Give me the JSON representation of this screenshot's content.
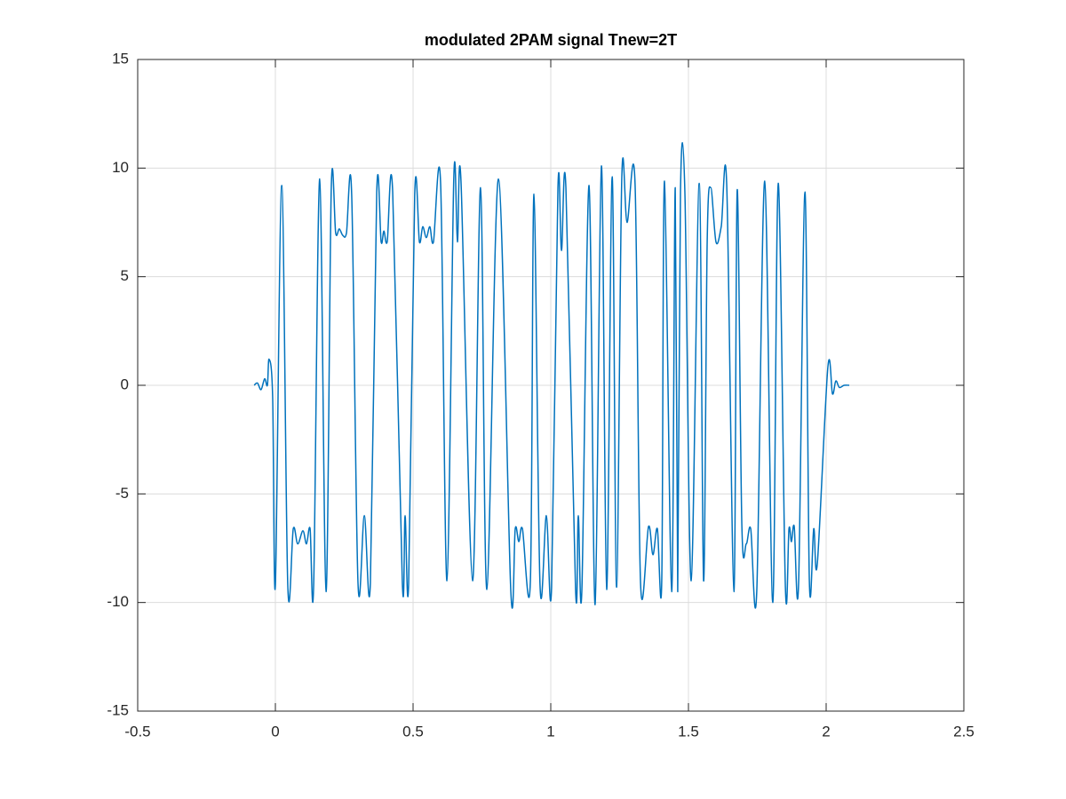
{
  "chart_data": {
    "type": "line",
    "title": "modulated 2PAM signal Tnew=2T",
    "x": [
      -0.077,
      -0.065,
      -0.052,
      -0.039,
      -0.029,
      -0.023,
      -0.01,
      0,
      0.023,
      0.045,
      0.065,
      0.081,
      0.1,
      0.113,
      0.126,
      0.139,
      0.161,
      0.184,
      0.203,
      0.219,
      0.232,
      0.245,
      0.258,
      0.277,
      0.3,
      0.323,
      0.345,
      0.368,
      0.384,
      0.394,
      0.406,
      0.426,
      0.461,
      0.471,
      0.484,
      0.506,
      0.523,
      0.535,
      0.548,
      0.561,
      0.574,
      0.6,
      0.623,
      0.648,
      0.661,
      0.674,
      0.716,
      0.745,
      0.768,
      0.81,
      0.855,
      0.871,
      0.884,
      0.897,
      0.926,
      0.939,
      0.961,
      0.984,
      1.003,
      1.026,
      1.039,
      1.055,
      1.09,
      1.1,
      1.113,
      1.139,
      1.161,
      1.184,
      1.203,
      1.223,
      1.239,
      1.258,
      1.277,
      1.306,
      1.326,
      1.355,
      1.371,
      1.387,
      1.403,
      1.413,
      1.439,
      1.452,
      1.461,
      1.471,
      1.487,
      1.51,
      1.539,
      1.555,
      1.568,
      1.581,
      1.6,
      1.619,
      1.639,
      1.665,
      1.677,
      1.694,
      1.71,
      1.726,
      1.748,
      1.777,
      1.806,
      1.826,
      1.852,
      1.865,
      1.874,
      1.884,
      1.9,
      1.923,
      1.939,
      1.955,
      1.968,
      2.006,
      2.023,
      2.035,
      2.048,
      2.065,
      2.084
    ],
    "series": [
      {
        "color": "#0072bd",
        "values": [
          0,
          0.1,
          -0.2,
          0.3,
          0,
          1.2,
          -0.5,
          -9.2,
          9.2,
          -9.2,
          -6.6,
          -7.3,
          -6.7,
          -7.3,
          -6.6,
          -9.2,
          9.5,
          -9.5,
          9.1,
          7.0,
          7.2,
          6.9,
          7.0,
          8.8,
          -9.1,
          -6.0,
          -9.1,
          8.9,
          6.6,
          7.1,
          6.6,
          8.9,
          -9.1,
          -6.0,
          -9.1,
          8.8,
          6.6,
          7.3,
          6.8,
          7.3,
          6.6,
          9.3,
          -9.0,
          9.6,
          6.6,
          9.4,
          -9.0,
          9.1,
          -9.4,
          9.5,
          -9.5,
          -6.6,
          -7.2,
          -6.6,
          -9.0,
          8.8,
          -9.2,
          -6.0,
          -9.3,
          9.1,
          6.2,
          9.1,
          -9.4,
          -6.0,
          -9.4,
          9.2,
          -10.1,
          10.1,
          -9.4,
          9.6,
          -9.3,
          9.6,
          7.5,
          9.3,
          -9.1,
          -6.5,
          -7.8,
          -6.6,
          -9.0,
          9.4,
          -9.5,
          9.1,
          -9.5,
          8.9,
          8.9,
          -9.0,
          9.3,
          -9.0,
          6.6,
          9.1,
          6.6,
          7.3,
          9.2,
          -9.5,
          9.0,
          -6.5,
          -7.3,
          -6.6,
          -9.5,
          9.4,
          -10.0,
          9.3,
          -9.3,
          -6.6,
          -7.2,
          -6.5,
          -9.1,
          8.9,
          -9.0,
          -6.6,
          -8.2,
          0.8,
          -0.4,
          0.2,
          -0.1,
          0,
          0
        ]
      }
    ],
    "xlim": [
      -0.5,
      2.5
    ],
    "xticks": [
      -0.5,
      0,
      0.5,
      1,
      1.5,
      2,
      2.5
    ],
    "ylim": [
      -15,
      15
    ],
    "yticks": [
      -15,
      -10,
      -5,
      0,
      5,
      10,
      15
    ],
    "grid": true
  }
}
